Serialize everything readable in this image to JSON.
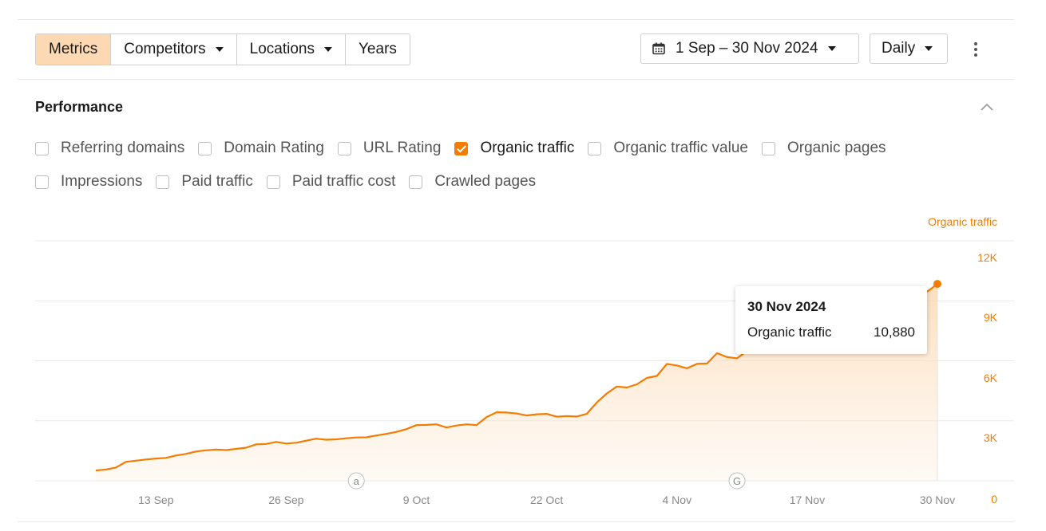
{
  "toolbar": {
    "tabs": [
      {
        "label": "Metrics",
        "active": true,
        "dropdown": false
      },
      {
        "label": "Competitors",
        "active": false,
        "dropdown": true
      },
      {
        "label": "Locations",
        "active": false,
        "dropdown": true
      },
      {
        "label": "Years",
        "active": false,
        "dropdown": false
      }
    ],
    "date_range": "1 Sep – 30 Nov 2024",
    "granularity": "Daily"
  },
  "performance": {
    "title": "Performance",
    "metrics": [
      {
        "label": "Referring domains",
        "checked": false
      },
      {
        "label": "Domain Rating",
        "checked": false
      },
      {
        "label": "URL Rating",
        "checked": false
      },
      {
        "label": "Organic traffic",
        "checked": true
      },
      {
        "label": "Organic traffic value",
        "checked": false
      },
      {
        "label": "Organic pages",
        "checked": false
      },
      {
        "label": "Impressions",
        "checked": false
      },
      {
        "label": "Paid traffic",
        "checked": false
      },
      {
        "label": "Paid traffic cost",
        "checked": false
      },
      {
        "label": "Crawled pages",
        "checked": false
      }
    ]
  },
  "tooltip": {
    "date": "30 Nov 2024",
    "metric": "Organic traffic",
    "value": "10,880"
  },
  "chart_data": {
    "type": "area",
    "series_name": "Organic traffic",
    "ylabel": "Organic traffic",
    "yticks": [
      "0",
      "3K",
      "6K",
      "9K",
      "12K"
    ],
    "ylim": [
      0,
      12000
    ],
    "xticks": [
      "13 Sep",
      "26 Sep",
      "9 Oct",
      "22 Oct",
      "4 Nov",
      "17 Nov",
      "30 Nov"
    ],
    "xlim": [
      "2024-09-01",
      "2024-11-30"
    ],
    "annotations": [
      {
        "date": "2024-10-03",
        "marker": "a"
      },
      {
        "date": "2024-11-10",
        "marker": "G"
      }
    ],
    "color": "#f57c00",
    "grid": true,
    "points": [
      [
        "2024-09-07",
        1550
      ],
      [
        "2024-09-08",
        1600
      ],
      [
        "2024-09-09",
        1700
      ],
      [
        "2024-09-10",
        1980
      ],
      [
        "2024-09-11",
        2040
      ],
      [
        "2024-09-12",
        2100
      ],
      [
        "2024-09-13",
        2150
      ],
      [
        "2024-09-14",
        2180
      ],
      [
        "2024-09-15",
        2300
      ],
      [
        "2024-09-16",
        2380
      ],
      [
        "2024-09-17",
        2500
      ],
      [
        "2024-09-18",
        2560
      ],
      [
        "2024-09-19",
        2600
      ],
      [
        "2024-09-20",
        2570
      ],
      [
        "2024-09-21",
        2630
      ],
      [
        "2024-09-22",
        2690
      ],
      [
        "2024-09-23",
        2860
      ],
      [
        "2024-09-24",
        2880
      ],
      [
        "2024-09-25",
        2980
      ],
      [
        "2024-09-26",
        2900
      ],
      [
        "2024-09-27",
        2940
      ],
      [
        "2024-09-28",
        3040
      ],
      [
        "2024-09-29",
        3140
      ],
      [
        "2024-09-30",
        3090
      ],
      [
        "2024-10-01",
        3110
      ],
      [
        "2024-10-02",
        3160
      ],
      [
        "2024-10-03",
        3200
      ],
      [
        "2024-10-04",
        3210
      ],
      [
        "2024-10-05",
        3300
      ],
      [
        "2024-10-06",
        3380
      ],
      [
        "2024-10-07",
        3480
      ],
      [
        "2024-10-08",
        3620
      ],
      [
        "2024-10-09",
        3820
      ],
      [
        "2024-10-10",
        3830
      ],
      [
        "2024-10-11",
        3860
      ],
      [
        "2024-10-12",
        3700
      ],
      [
        "2024-10-13",
        3800
      ],
      [
        "2024-10-14",
        3860
      ],
      [
        "2024-10-15",
        3820
      ],
      [
        "2024-10-16",
        4220
      ],
      [
        "2024-10-17",
        4460
      ],
      [
        "2024-10-18",
        4450
      ],
      [
        "2024-10-19",
        4400
      ],
      [
        "2024-10-20",
        4300
      ],
      [
        "2024-10-21",
        4360
      ],
      [
        "2024-10-22",
        4380
      ],
      [
        "2024-10-23",
        4240
      ],
      [
        "2024-10-24",
        4270
      ],
      [
        "2024-10-25",
        4250
      ],
      [
        "2024-10-26",
        4380
      ],
      [
        "2024-10-27",
        4950
      ],
      [
        "2024-10-28",
        5400
      ],
      [
        "2024-10-29",
        5750
      ],
      [
        "2024-10-30",
        5700
      ],
      [
        "2024-10-31",
        5860
      ],
      [
        "2024-11-01",
        6180
      ],
      [
        "2024-11-02",
        6280
      ],
      [
        "2024-11-03",
        6880
      ],
      [
        "2024-11-04",
        6800
      ],
      [
        "2024-11-05",
        6660
      ],
      [
        "2024-11-06",
        6880
      ],
      [
        "2024-11-07",
        6900
      ],
      [
        "2024-11-08",
        7420
      ],
      [
        "2024-11-09",
        7220
      ],
      [
        "2024-11-10",
        7160
      ],
      [
        "2024-11-11",
        7520
      ],
      [
        "2024-11-12",
        7500
      ],
      [
        "2024-11-13",
        7580
      ],
      [
        "2024-11-14",
        7850
      ],
      [
        "2024-11-15",
        7880
      ],
      [
        "2024-11-16",
        8120
      ],
      [
        "2024-11-17",
        8300
      ],
      [
        "2024-11-18",
        8450
      ],
      [
        "2024-11-19",
        8650
      ],
      [
        "2024-11-20",
        8850
      ],
      [
        "2024-11-21",
        9040
      ],
      [
        "2024-11-22",
        9150
      ],
      [
        "2024-11-23",
        9400
      ],
      [
        "2024-11-24",
        9700
      ],
      [
        "2024-11-25",
        9950
      ],
      [
        "2024-11-26",
        10180
      ],
      [
        "2024-11-27",
        10400
      ],
      [
        "2024-11-28",
        10420
      ],
      [
        "2024-11-29",
        10500
      ],
      [
        "2024-11-30",
        10880
      ]
    ]
  }
}
